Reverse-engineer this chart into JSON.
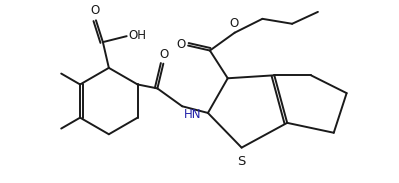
{
  "background_color": "#ffffff",
  "line_color": "#1a1a1a",
  "line_width": 1.4,
  "figsize": [
    3.99,
    1.83
  ],
  "dpi": 100,
  "xlim": [
    0,
    3.99
  ],
  "ylim": [
    0,
    1.83
  ],
  "text_color": "#1a1a1a",
  "hn_color": "#2222aa",
  "font_size": 8.5,
  "s_font_size": 9.5
}
